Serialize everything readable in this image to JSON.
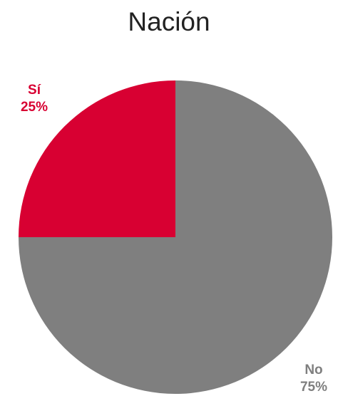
{
  "chart_data": {
    "type": "pie",
    "title": "Nación",
    "categories": [
      "Sí",
      "No"
    ],
    "values": [
      25,
      75
    ],
    "slice_labels": [
      "Sí\n25%",
      "No\n75%"
    ],
    "colors": [
      "#d80032",
      "#7f7f7f"
    ],
    "legend": "none"
  }
}
